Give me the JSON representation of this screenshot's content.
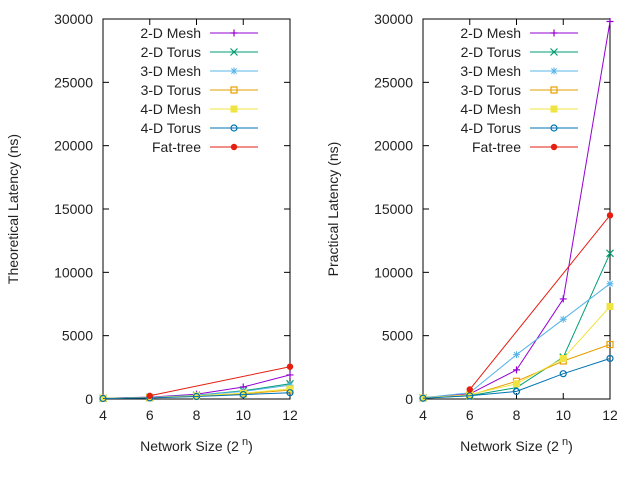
{
  "colors": {
    "2-D Mesh": "#9400D3",
    "2-D Torus": "#009E73",
    "3-D Mesh": "#56B4E9",
    "3-D Torus": "#E69F00",
    "4-D Mesh": "#F0E442",
    "4-D Torus": "#0072B2",
    "Fat-tree": "#E51E10"
  },
  "markers": {
    "2-D Mesh": "plus",
    "2-D Torus": "cross",
    "3-D Mesh": "star",
    "3-D Torus": "open-square",
    "4-D Mesh": "filled-square",
    "4-D Torus": "open-circle",
    "Fat-tree": "filled-circle"
  },
  "chart_data": [
    {
      "type": "line",
      "xlabel": "Network Size (2",
      "xlabel_sup": "n",
      "xlabel_tail": ")",
      "ylabel": "Theoretical Latency (ns)",
      "xlim": [
        4,
        12
      ],
      "ylim": [
        0,
        30000
      ],
      "xticks": [
        "4",
        "6",
        "8",
        "10",
        "12"
      ],
      "yticks": [
        "0",
        "5000",
        "10000",
        "15000",
        "20000",
        "25000",
        "30000"
      ],
      "grid": false,
      "legend": "top-right",
      "series": [
        {
          "name": "2-D Mesh",
          "x": [
            4,
            6,
            8,
            10,
            12
          ],
          "y": [
            60,
            150,
            380,
            950,
            1900
          ]
        },
        {
          "name": "2-D Torus",
          "x": [
            4,
            6,
            8,
            10,
            12
          ],
          "y": [
            50,
            120,
            300,
            650,
            1200
          ]
        },
        {
          "name": "3-D Mesh",
          "x": [
            4,
            6,
            8,
            10,
            12
          ],
          "y": [
            60,
            130,
            300,
            600,
            1100
          ]
        },
        {
          "name": "3-D Torus",
          "x": [
            4,
            6,
            8,
            10,
            12
          ],
          "y": [
            50,
            100,
            220,
            400,
            700
          ]
        },
        {
          "name": "4-D Mesh",
          "x": [
            4,
            6,
            8,
            10,
            12
          ],
          "y": [
            50,
            110,
            250,
            450,
            800
          ]
        },
        {
          "name": "4-D Torus",
          "x": [
            4,
            6,
            8,
            10,
            12
          ],
          "y": [
            40,
            90,
            200,
            350,
            500
          ]
        },
        {
          "name": "Fat-tree",
          "x": [
            6,
            12
          ],
          "y": [
            250,
            2550
          ]
        }
      ]
    },
    {
      "type": "line",
      "xlabel": "Network Size (2",
      "xlabel_sup": "n",
      "xlabel_tail": ")",
      "ylabel": "Practical Latency (ns)",
      "xlim": [
        4,
        12
      ],
      "ylim": [
        0,
        30000
      ],
      "xticks": [
        "4",
        "6",
        "8",
        "10",
        "12"
      ],
      "yticks": [
        "0",
        "5000",
        "10000",
        "15000",
        "20000",
        "25000",
        "30000"
      ],
      "grid": false,
      "legend": "top-right",
      "series": [
        {
          "name": "2-D Mesh",
          "x": [
            4,
            6,
            8,
            10,
            12
          ],
          "y": [
            100,
            400,
            2300,
            7900,
            29800
          ]
        },
        {
          "name": "2-D Torus",
          "x": [
            4,
            6,
            8,
            10,
            12
          ],
          "y": [
            80,
            250,
            900,
            3300,
            11500
          ]
        },
        {
          "name": "3-D Mesh",
          "x": [
            4,
            6,
            8,
            10,
            12
          ],
          "y": [
            100,
            500,
            3500,
            6300,
            9100
          ]
        },
        {
          "name": "3-D Torus",
          "x": [
            4,
            6,
            8,
            10,
            12
          ],
          "y": [
            80,
            300,
            1400,
            3000,
            4300
          ]
        },
        {
          "name": "4-D Mesh",
          "x": [
            4,
            6,
            8,
            10,
            12
          ],
          "y": [
            80,
            350,
            1200,
            3200,
            7300
          ]
        },
        {
          "name": "4-D Torus",
          "x": [
            4,
            6,
            8,
            10,
            12
          ],
          "y": [
            60,
            250,
            600,
            2000,
            3200
          ]
        },
        {
          "name": "Fat-tree",
          "x": [
            6,
            12
          ],
          "y": [
            750,
            14500
          ]
        }
      ]
    }
  ]
}
